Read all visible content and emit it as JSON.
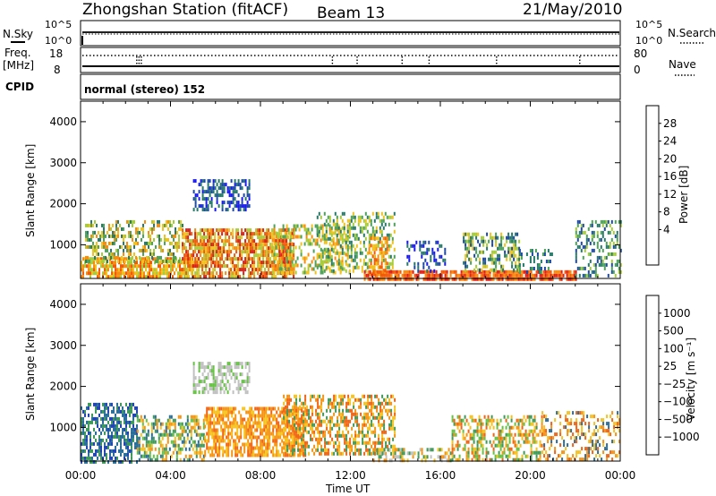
{
  "header": {
    "station": "Zhongshan Station (fitACF)",
    "beam": "Beam 13",
    "date": "21/May/2010"
  },
  "top_panels": {
    "nsky_label": "N.Sky",
    "nsearch_label": "N.Search",
    "log_ticks": [
      "10^5",
      "10^0"
    ],
    "freq_label": "Freq.",
    "freq_unit": "[MHz]",
    "freq_ticks": [
      "18",
      "8"
    ],
    "nave_label": "Nave",
    "nave_ticks": [
      "80",
      "0"
    ],
    "cpid_label": "CPID",
    "cpid_value": "normal (stereo) 152"
  },
  "colorbars": {
    "power": {
      "label": "Power [dB]",
      "ticks": [
        "28",
        "24",
        "20",
        "16",
        "12",
        "8",
        "4"
      ],
      "colors": [
        "#e0201a",
        "#f25a0a",
        "#f88c10",
        "#f2c21a",
        "#a6cc3a",
        "#4ea25a",
        "#287a6a",
        "#1e4aa6",
        "#1a1af0"
      ]
    },
    "velocity": {
      "label": "Velocity [m s⁻¹]",
      "ticks": [
        "1000",
        "500",
        "100",
        "25",
        "−25",
        "−100",
        "−500",
        "−1000"
      ],
      "colors": [
        "#2244b4",
        "#2a6e9a",
        "#3f9a5a",
        "#66c244",
        "#c0c0c0",
        "#f6c21e",
        "#f59414",
        "#f06414",
        "#e0141a"
      ]
    }
  },
  "chart_data": [
    {
      "type": "heatmap",
      "name": "power",
      "x_unit": "hours UT",
      "xlim": [
        0,
        24
      ],
      "ylim": [
        180,
        4500
      ],
      "ylabel": "Slant Range [km]",
      "yticks": [
        "4000",
        "3000",
        "2000",
        "1000"
      ],
      "xticks": [
        "00:00",
        "04:00",
        "08:00",
        "12:00",
        "16:00",
        "20:00",
        "00:00"
      ],
      "colorbar": "power",
      "regions": [
        {
          "t0": 0.0,
          "t1": 5.0,
          "r0": 180,
          "r1": 700,
          "levels": [
            1,
            2,
            3,
            4
          ],
          "density": 0.75
        },
        {
          "t0": 0.2,
          "t1": 4.5,
          "r0": 600,
          "r1": 1600,
          "levels": [
            2,
            3,
            4,
            5,
            6
          ],
          "density": 0.45
        },
        {
          "t0": 4.5,
          "t1": 9.5,
          "r0": 250,
          "r1": 1400,
          "levels": [
            0,
            1,
            2,
            3,
            4
          ],
          "density": 0.75
        },
        {
          "t0": 5.0,
          "t1": 7.5,
          "r0": 1900,
          "r1": 2600,
          "levels": [
            6,
            7,
            8
          ],
          "density": 0.5
        },
        {
          "t0": 8.5,
          "t1": 12.0,
          "r0": 300,
          "r1": 1500,
          "levels": [
            2,
            3,
            4,
            5
          ],
          "density": 0.45
        },
        {
          "t0": 10.5,
          "t1": 14.0,
          "r0": 400,
          "r1": 1800,
          "levels": [
            3,
            4,
            5,
            6
          ],
          "density": 0.4
        },
        {
          "t0": 12.8,
          "t1": 13.6,
          "r0": 300,
          "r1": 1200,
          "levels": [
            1,
            2,
            3
          ],
          "density": 0.55
        },
        {
          "t0": 12.6,
          "t1": 22.0,
          "r0": 180,
          "r1": 380,
          "levels": [
            0,
            1,
            2
          ],
          "density": 0.85
        },
        {
          "t0": 14.5,
          "t1": 16.2,
          "r0": 380,
          "r1": 1100,
          "levels": [
            6,
            7,
            8
          ],
          "density": 0.25
        },
        {
          "t0": 17.0,
          "t1": 19.5,
          "r0": 400,
          "r1": 1300,
          "levels": [
            3,
            4,
            5,
            6,
            7
          ],
          "density": 0.5
        },
        {
          "t0": 19.5,
          "t1": 21.0,
          "r0": 300,
          "r1": 900,
          "levels": [
            5,
            6,
            7
          ],
          "density": 0.3
        },
        {
          "t0": 22.0,
          "t1": 24.0,
          "r0": 250,
          "r1": 1600,
          "levels": [
            4,
            5,
            6,
            7
          ],
          "density": 0.35
        }
      ]
    },
    {
      "type": "heatmap",
      "name": "velocity",
      "x_unit": "hours UT",
      "xlim": [
        0,
        24
      ],
      "ylim": [
        180,
        4500
      ],
      "ylabel": "Slant Range [km]",
      "xlabel": "Time UT",
      "yticks": [
        "4000",
        "3000",
        "2000",
        "1000"
      ],
      "xticks": [
        "00:00",
        "04:00",
        "08:00",
        "12:00",
        "16:00",
        "20:00",
        "00:00"
      ],
      "colorbar": "velocity",
      "regions": [
        {
          "t0": 0.0,
          "t1": 2.5,
          "r0": 180,
          "r1": 1600,
          "levels": [
            0,
            1,
            2
          ],
          "density": 0.55
        },
        {
          "t0": 2.5,
          "t1": 5.5,
          "r0": 250,
          "r1": 1300,
          "levels": [
            1,
            2,
            3,
            5,
            6
          ],
          "density": 0.55
        },
        {
          "t0": 5.0,
          "t1": 7.5,
          "r0": 1900,
          "r1": 2600,
          "levels": [
            4,
            4,
            3
          ],
          "density": 0.55
        },
        {
          "t0": 5.5,
          "t1": 10.0,
          "r0": 300,
          "r1": 1500,
          "levels": [
            5,
            6,
            7,
            6
          ],
          "density": 0.7
        },
        {
          "t0": 9.0,
          "t1": 14.0,
          "r0": 350,
          "r1": 1800,
          "levels": [
            5,
            6,
            7,
            2
          ],
          "density": 0.5
        },
        {
          "t0": 13.0,
          "t1": 16.5,
          "r0": 180,
          "r1": 500,
          "levels": [
            4,
            5,
            6,
            2
          ],
          "density": 0.45
        },
        {
          "t0": 16.5,
          "t1": 20.5,
          "r0": 250,
          "r1": 1300,
          "levels": [
            2,
            3,
            5,
            6,
            7
          ],
          "density": 0.45
        },
        {
          "t0": 20.5,
          "t1": 24.0,
          "r0": 180,
          "r1": 1400,
          "levels": [
            1,
            5,
            6,
            7
          ],
          "density": 0.4
        }
      ]
    }
  ]
}
